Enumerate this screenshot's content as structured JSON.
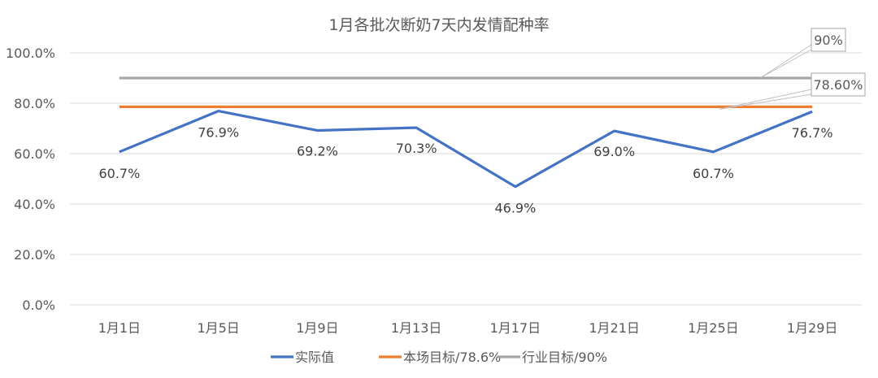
{
  "chart_data": {
    "type": "line",
    "title": "1月各批次断奶7天内发情配种率",
    "categories": [
      "1月1日",
      "1月5日",
      "1月9日",
      "1月13日",
      "1月17日",
      "1月21日",
      "1月25日",
      "1月29日"
    ],
    "ylim": [
      0,
      100
    ],
    "yticks": [
      "0.0%",
      "20.0%",
      "40.0%",
      "60.0%",
      "80.0%",
      "100.0%"
    ],
    "grid": true,
    "legend_position": "bottom",
    "series": [
      {
        "name": "实际值",
        "color": "#4472C4",
        "values": [
          60.7,
          76.9,
          69.2,
          70.3,
          46.9,
          69.0,
          60.7,
          76.7
        ],
        "labels": [
          "60.7%",
          "76.9%",
          "69.2%",
          "70.3%",
          "46.9%",
          "69.0%",
          "60.7%",
          "76.7%"
        ]
      },
      {
        "name": "本场目标/78.6%",
        "color": "#ED7D31",
        "values": [
          78.6,
          78.6,
          78.6,
          78.6,
          78.6,
          78.6,
          78.6,
          78.6
        ],
        "callout": "78.60%"
      },
      {
        "name": "行业目标/90%",
        "color": "#A5A5A5",
        "values": [
          90,
          90,
          90,
          90,
          90,
          90,
          90,
          90
        ],
        "callout": "90%"
      }
    ]
  }
}
